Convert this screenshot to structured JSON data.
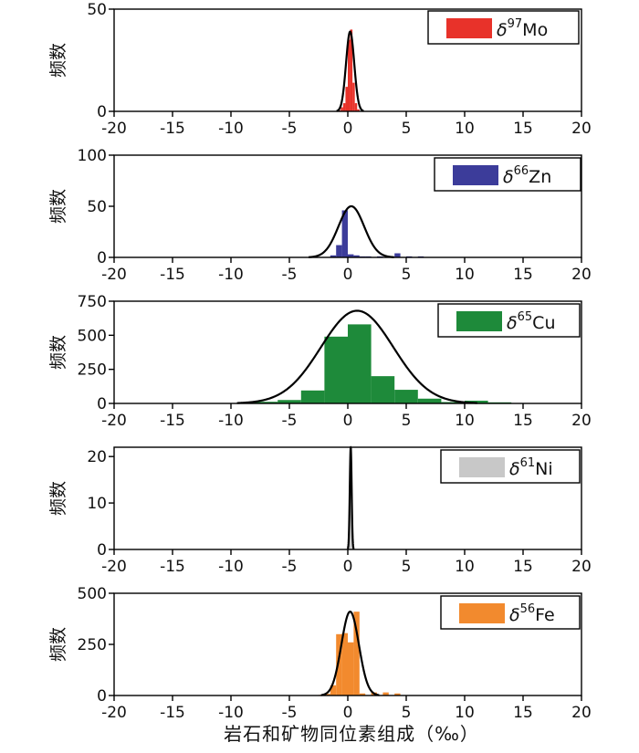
{
  "figure": {
    "xlabel": "岩石和矿物同位素组成（‰）",
    "shared_xticks": [
      "-20",
      "-15",
      "-10",
      "-5",
      "0",
      "5",
      "10",
      "15",
      "20"
    ]
  },
  "chart_data": [
    {
      "type": "bar",
      "legend": {
        "delta": "δ",
        "sup": "97",
        "element": "Mo",
        "color": "#e8322a",
        "placement": "top-right"
      },
      "ylabel": "频数",
      "xlim": [
        -20,
        20
      ],
      "ylim": [
        0,
        50
      ],
      "yticks": [
        "0",
        "50"
      ],
      "bin_width": 0.2,
      "bins": [
        [
          -0.8,
          0.5
        ],
        [
          -0.6,
          2
        ],
        [
          -0.4,
          4
        ],
        [
          -0.2,
          12
        ],
        [
          0.0,
          35
        ],
        [
          0.2,
          40
        ],
        [
          0.4,
          14
        ],
        [
          0.6,
          4
        ],
        [
          0.8,
          1
        ]
      ],
      "fit": {
        "peak": 39,
        "mean": 0.2,
        "sd": 0.35
      },
      "bar_color": "#e8322a"
    },
    {
      "type": "bar",
      "legend": {
        "delta": "δ",
        "sup": "66",
        "element": "Zn",
        "color": "#3c3c9a",
        "placement": "top-right"
      },
      "ylabel": "频数",
      "xlim": [
        -20,
        20
      ],
      "ylim": [
        0,
        100
      ],
      "yticks": [
        "0",
        "50",
        "100"
      ],
      "bin_width": 0.5,
      "bins": [
        [
          -1.5,
          2
        ],
        [
          -1.0,
          12
        ],
        [
          -0.5,
          46
        ],
        [
          0.0,
          3
        ],
        [
          0.5,
          2
        ],
        [
          1.0,
          1
        ],
        [
          1.5,
          1
        ],
        [
          2.5,
          1
        ],
        [
          3.5,
          1
        ],
        [
          4.0,
          4
        ],
        [
          5.0,
          1
        ],
        [
          6.0,
          1
        ]
      ],
      "fit": {
        "peak": 50,
        "mean": 0.3,
        "sd": 1.1
      },
      "bar_color": "#3c3c9a"
    },
    {
      "type": "bar",
      "legend": {
        "delta": "δ",
        "sup": "65",
        "element": "Cu",
        "color": "#1e8a3a",
        "placement": "top-right"
      },
      "ylabel": "频数",
      "xlim": [
        -20,
        20
      ],
      "ylim": [
        0,
        750
      ],
      "yticks": [
        "0",
        "250",
        "500",
        "750"
      ],
      "bin_width": 2,
      "bins": [
        [
          -10,
          3
        ],
        [
          -8,
          12
        ],
        [
          -6,
          25
        ],
        [
          -4,
          95
        ],
        [
          -2,
          490
        ],
        [
          0,
          580
        ],
        [
          2,
          200
        ],
        [
          4,
          100
        ],
        [
          6,
          35
        ],
        [
          8,
          10
        ],
        [
          10,
          20
        ],
        [
          12,
          8
        ],
        [
          14,
          3
        ]
      ],
      "fit": {
        "peak": 680,
        "mean": 0.8,
        "sd": 3.1
      },
      "bar_color": "#1e8a3a"
    },
    {
      "type": "bar",
      "legend": {
        "delta": "δ",
        "sup": "61",
        "element": "Ni",
        "color": "#c8c8c8",
        "placement": "top-right"
      },
      "ylabel": "频数",
      "xlim": [
        -20,
        20
      ],
      "ylim": [
        0,
        22
      ],
      "yticks": [
        "0",
        "10",
        "20"
      ],
      "bin_width": 0.1,
      "bins": [
        [
          0.1,
          5
        ],
        [
          0.2,
          21
        ],
        [
          0.3,
          8
        ]
      ],
      "fit": {
        "peak": 22,
        "mean": 0.25,
        "sd": 0.08
      },
      "bar_color": "#c8c8c8"
    },
    {
      "type": "bar",
      "legend": {
        "delta": "δ",
        "sup": "56",
        "element": "Fe",
        "color": "#f28a2e",
        "placement": "top-right"
      },
      "ylabel": "频数",
      "xlim": [
        -20,
        20
      ],
      "ylim": [
        0,
        500
      ],
      "yticks": [
        "0",
        "250",
        "500"
      ],
      "bin_width": 0.5,
      "bins": [
        [
          -2.5,
          3
        ],
        [
          -2.0,
          8
        ],
        [
          -1.5,
          50
        ],
        [
          -1.0,
          300
        ],
        [
          -0.5,
          305
        ],
        [
          0.0,
          260
        ],
        [
          0.5,
          410
        ],
        [
          1.0,
          10
        ],
        [
          2.0,
          15
        ],
        [
          3.0,
          15
        ],
        [
          4.0,
          10
        ]
      ],
      "fit": {
        "peak": 410,
        "mean": 0.2,
        "sd": 0.75
      },
      "bar_color": "#f28a2e"
    }
  ]
}
